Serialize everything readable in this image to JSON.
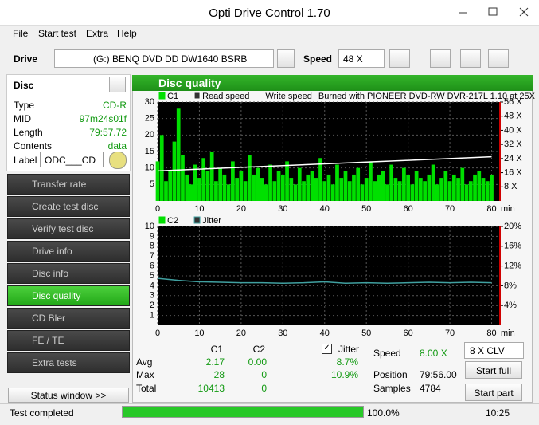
{
  "window": {
    "title": "Opti Drive Control 1.70"
  },
  "menu": [
    "File",
    "Start test",
    "Extra",
    "Help"
  ],
  "toolbar": {
    "drive_label": "Drive",
    "drive": "(G:)  BENQ DVD DD DW1640 BSRB",
    "speed_label": "Speed",
    "speed": "48 X"
  },
  "disc": {
    "header": "Disc",
    "rows": [
      [
        "Type",
        "CD-R"
      ],
      [
        "MID",
        "97m24s01f"
      ],
      [
        "Length",
        "79:57.72"
      ],
      [
        "Contents",
        "data"
      ]
    ],
    "label_label": "Label",
    "label": "ODC___CD"
  },
  "nav": {
    "items": [
      "Transfer rate",
      "Create test disc",
      "Verify test disc",
      "Drive info",
      "Disc info",
      "Disc quality",
      "CD Bler",
      "FE / TE",
      "Extra tests"
    ],
    "selected": 5
  },
  "status_window": "Status window >>",
  "panel_title": "Disc quality",
  "chart1": {
    "type": "bar",
    "notes": [
      "Write speed",
      "Burned with PIONEER DVD-RW  DVR-217L 1.10 at 25X"
    ],
    "xlim": [
      0,
      82
    ],
    "xticks": [
      0,
      10,
      20,
      30,
      40,
      50,
      60,
      70,
      80
    ],
    "x_unit": "min",
    "ylim": [
      0,
      30
    ],
    "yticks": [
      5,
      10,
      15,
      20,
      25,
      30
    ],
    "y2lim": [
      0,
      56
    ],
    "y2ticks": [
      {
        "value": 8,
        "label": "8 X"
      },
      {
        "value": 16,
        "label": "16 X"
      },
      {
        "value": 24,
        "label": "24 X"
      },
      {
        "value": 32,
        "label": "32 X"
      },
      {
        "value": 40,
        "label": "40 X"
      },
      {
        "value": 48,
        "label": "48 X"
      },
      {
        "value": 56,
        "label": "56 X"
      }
    ],
    "series": [
      {
        "name": "C1",
        "color": "#00e000",
        "type": "bar",
        "x": [
          0,
          1,
          2,
          3,
          4,
          5,
          6,
          7,
          8,
          9,
          10,
          11,
          12,
          13,
          14,
          15,
          16,
          17,
          18,
          19,
          20,
          21,
          22,
          23,
          24,
          25,
          26,
          27,
          28,
          29,
          30,
          31,
          32,
          33,
          34,
          35,
          36,
          37,
          38,
          39,
          40,
          41,
          42,
          43,
          44,
          45,
          46,
          47,
          48,
          49,
          50,
          51,
          52,
          53,
          54,
          55,
          56,
          57,
          58,
          59,
          60,
          61,
          62,
          63,
          64,
          65,
          66,
          67,
          68,
          69,
          70,
          71,
          72,
          73,
          74,
          75,
          76,
          77,
          78,
          79,
          80
        ],
        "values": [
          12,
          20,
          6,
          9,
          18,
          28,
          14,
          8,
          5,
          11,
          7,
          13,
          9,
          15,
          6,
          10,
          8,
          5,
          12,
          7,
          9,
          6,
          14,
          8,
          10,
          7,
          5,
          11,
          6,
          9,
          8,
          12,
          7,
          5,
          10,
          6,
          8,
          9,
          7,
          13,
          6,
          8,
          5,
          11,
          7,
          9,
          6,
          8,
          10,
          5,
          7,
          12,
          6,
          8,
          9,
          5,
          11,
          7,
          6,
          10,
          8,
          5,
          9,
          7,
          6,
          8,
          11,
          5,
          7,
          9,
          6,
          8,
          7,
          10,
          5,
          6,
          8,
          9,
          7,
          6,
          8
        ]
      },
      {
        "name": "Read speed",
        "color": "#ffffff",
        "type": "line",
        "axis": "y2",
        "x": [
          0,
          10,
          20,
          30,
          40,
          50,
          60,
          70,
          80
        ],
        "values": [
          17,
          18,
          19,
          20,
          21,
          22,
          23,
          24,
          25
        ]
      }
    ]
  },
  "chart2": {
    "type": "bar",
    "xlim": [
      0,
      82
    ],
    "xticks": [
      0,
      10,
      20,
      30,
      40,
      50,
      60,
      70,
      80
    ],
    "x_unit": "min",
    "ylim": [
      0,
      10
    ],
    "yticks": [
      1,
      2,
      3,
      4,
      5,
      6,
      7,
      8,
      9,
      10
    ],
    "y2lim": [
      0,
      20
    ],
    "y2ticks": [
      {
        "value": 4,
        "label": "4%"
      },
      {
        "value": 8,
        "label": "8%"
      },
      {
        "value": 12,
        "label": "12%"
      },
      {
        "value": 16,
        "label": "16%"
      },
      {
        "value": 20,
        "label": "20%"
      }
    ],
    "series": [
      {
        "name": "C2",
        "color": "#00e000",
        "type": "bar",
        "x": [
          0,
          5,
          10,
          15,
          20,
          25,
          30,
          35,
          40,
          45,
          50,
          55,
          60,
          65,
          70,
          75,
          80
        ],
        "values": [
          0,
          0,
          0,
          0,
          0,
          0,
          0,
          0,
          0,
          0,
          0,
          0,
          0,
          0,
          0,
          0,
          0
        ]
      },
      {
        "name": "Jitter",
        "color": "#40a0a0",
        "type": "line",
        "axis": "y2",
        "x": [
          0,
          5,
          10,
          15,
          20,
          25,
          30,
          35,
          40,
          45,
          50,
          55,
          60,
          65,
          70,
          75,
          80
        ],
        "values": [
          9.5,
          9.1,
          8.8,
          8.7,
          8.6,
          8.6,
          8.5,
          8.6,
          8.8,
          8.5,
          8.6,
          8.5,
          8.6,
          8.7,
          8.6,
          8.7,
          8.6
        ]
      }
    ]
  },
  "stats": {
    "headers": [
      "C1",
      "C2",
      "Jitter"
    ],
    "rows": [
      [
        "Avg",
        "2.17",
        "0.00",
        "8.7%"
      ],
      [
        "Max",
        "28",
        "0",
        "10.9%"
      ],
      [
        "Total",
        "10413",
        "0"
      ]
    ]
  },
  "info": {
    "rows": [
      [
        "Speed",
        "8.00 X"
      ],
      [
        "Position",
        "79:56.00"
      ],
      [
        "Samples",
        "4784"
      ]
    ]
  },
  "mode": "8 X CLV",
  "buttons": [
    "Start full",
    "Start part"
  ],
  "status": {
    "text": "Test completed",
    "progress": "100.0%",
    "time": "10:25"
  }
}
